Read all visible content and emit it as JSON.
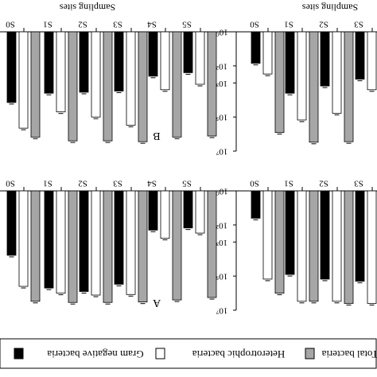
{
  "colors": {
    "gram_negative": "#000000",
    "heterotrophic": "#ffffff",
    "total": "#a6a6a6",
    "axis": "#000000"
  },
  "chart_data": [
    {
      "panel": "B",
      "type": "bar",
      "render": "rotated-180",
      "panel_label": "B",
      "xlabel": "Sampling sites",
      "categories": [
        "S0",
        "S1",
        "S2",
        "S3",
        "S4",
        "S5"
      ],
      "yscale": "log",
      "ylim": [
        1,
        10000000
      ],
      "y_ticks": [],
      "series": [
        {
          "name": "Gram negative bacteria",
          "values": [
            14000,
            4000,
            3500,
            3000,
            400,
            250
          ],
          "errors": [
            0,
            0,
            0,
            0,
            0,
            0
          ]
        },
        {
          "name": "Heterotrophic bacteria",
          "values": [
            450000,
            50000,
            100000,
            300000,
            2500,
            1200
          ],
          "errors": [
            0,
            0,
            0,
            0,
            0,
            0
          ]
        },
        {
          "name": "Total bacteria",
          "values": [
            1500000,
            2500000,
            2500000,
            2800000,
            1500000,
            1300000
          ],
          "errors": [
            0,
            0,
            0,
            0,
            0,
            0
          ]
        }
      ]
    },
    {
      "panel": "B-right",
      "type": "bar",
      "render": "rotated-180",
      "panel_label": "",
      "xlabel": "Sampling sites",
      "categories": [
        "S0",
        "S1",
        "S2",
        "S3"
      ],
      "yscale": "log",
      "ylim": [
        1,
        10000000
      ],
      "y_ticks": [
        "10⁰",
        "10²",
        "10³",
        "10⁵",
        "10⁷"
      ],
      "series": [
        {
          "name": "Gram negative bacteria",
          "values": [
            70,
            4000,
            1500,
            600
          ],
          "errors": [
            0,
            0,
            0,
            0
          ]
        },
        {
          "name": "Heterotrophic bacteria",
          "values": [
            300,
            150000,
            60000,
            2500
          ],
          "errors": [
            0,
            0,
            0,
            0
          ]
        },
        {
          "name": "Total bacteria",
          "values": [
            800000,
            3000000,
            2800000,
            3000000
          ],
          "errors": [
            0,
            0,
            0,
            0
          ]
        }
      ]
    },
    {
      "panel": "A",
      "type": "bar",
      "render": "rotated-180",
      "panel_label": "A",
      "xlabel": "",
      "categories": [
        "S0",
        "S1",
        "S2",
        "S3",
        "S4",
        "S5"
      ],
      "yscale": "log",
      "ylim": [
        1,
        10000000
      ],
      "y_ticks": [],
      "series": [
        {
          "name": "Gram negative bacteria",
          "values": [
            6000,
            500000,
            800000,
            300000,
            200,
            150
          ],
          "errors": [
            0,
            0,
            0,
            0,
            0,
            0
          ]
        },
        {
          "name": "Heterotrophic bacteria",
          "values": [
            400000,
            1000000,
            1300000,
            1200000,
            600,
            300
          ],
          "errors": [
            0,
            0,
            0,
            0,
            0,
            0
          ]
        },
        {
          "name": "Total bacteria",
          "values": [
            3000000,
            3500000,
            3500000,
            3300000,
            2500000,
            1800000
          ],
          "errors": [
            0,
            0,
            0,
            0,
            0,
            0
          ]
        }
      ]
    },
    {
      "panel": "A-right",
      "type": "bar",
      "render": "rotated-180",
      "panel_label": "",
      "xlabel": "",
      "categories": [
        "S0",
        "S1",
        "S2",
        "S3"
      ],
      "yscale": "log",
      "ylim": [
        1,
        10000000
      ],
      "y_ticks": [
        "10⁰",
        "10²",
        "10³",
        "10⁵",
        "10⁷"
      ],
      "series": [
        {
          "name": "Gram negative bacteria",
          "values": [
            40,
            80000,
            150000,
            200000
          ],
          "errors": [
            0,
            0,
            0,
            0
          ]
        },
        {
          "name": "Heterotrophic bacteria",
          "values": [
            150000,
            3000000,
            3000000,
            4000000
          ],
          "errors": [
            0,
            0,
            0,
            0
          ]
        },
        {
          "name": "Total bacteria",
          "values": [
            1000000,
            3000000,
            4000000,
            5000000
          ],
          "errors": [
            0,
            0,
            0,
            0
          ]
        }
      ]
    }
  ],
  "legend": {
    "render": "rotated-180",
    "items": [
      {
        "label": "Gram negative bacteria",
        "key": "gram_negative"
      },
      {
        "label": "Heterotrophic bacteria",
        "key": "heterotrophic"
      },
      {
        "label": "Total bacteria",
        "key": "total"
      }
    ]
  }
}
